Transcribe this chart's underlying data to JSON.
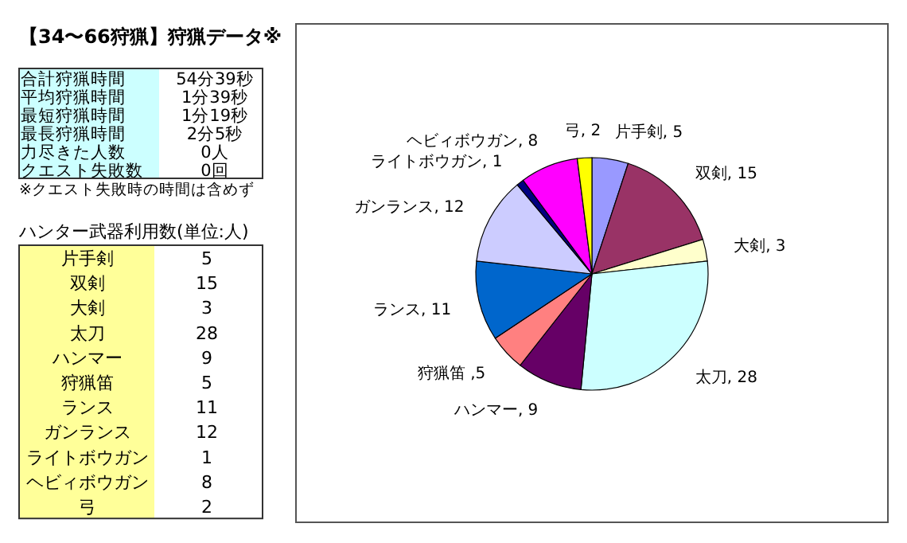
{
  "chart_data": [
    {
      "type": "other",
      "title": "【34〜66狩猟】狩猟データ※",
      "annotations": [
        "合計狩猟時間",
        "54分39秒",
        "平均狩猟時間",
        "1分39秒",
        "最短狩猟時間",
        "1分19秒",
        "最長狩猟時間",
        "2分5秒",
        "力尽きた人数",
        "0人",
        "クエスト失敗数",
        "0回",
        "※クエスト失敗時の時間は含めず",
        "ハンター武器利用数(単位:人)",
        "片手剣",
        "5",
        "双剣",
        "15",
        "大剣",
        "3",
        "太刀",
        "28",
        "ハンマー",
        "9",
        "狩猟笛",
        "5",
        "ランス",
        "11",
        "ガンランス",
        "12",
        "ライトボウガン",
        "1",
        "ヘビィボウガン",
        "8",
        "弓",
        "2"
      ]
    },
    {
      "type": "pie",
      "categories": [
        "片手剣",
        "双剣",
        "大剣",
        "太刀",
        "ハンマー",
        "狩猟笛",
        "ランス",
        "ガンランス",
        "ライトボウガン",
        "ヘビィボウガン",
        "弓"
      ],
      "values": [
        5,
        15,
        3,
        28,
        9,
        5,
        11,
        12,
        1,
        8,
        2
      ],
      "value_labels": [
        ", 5",
        ", 15",
        ", 3",
        ", 28",
        ", 9",
        " ,5",
        ", 11",
        ", 12",
        ", 1",
        ", 8",
        ", 2"
      ],
      "colors": [
        "#9999ff",
        "#993366",
        "#ffffcc",
        "#ccffff",
        "#660066",
        "#ff8080",
        "#0066cc",
        "#ccccff",
        "#000080",
        "#ff00ff",
        "#ffff00"
      ]
    }
  ]
}
